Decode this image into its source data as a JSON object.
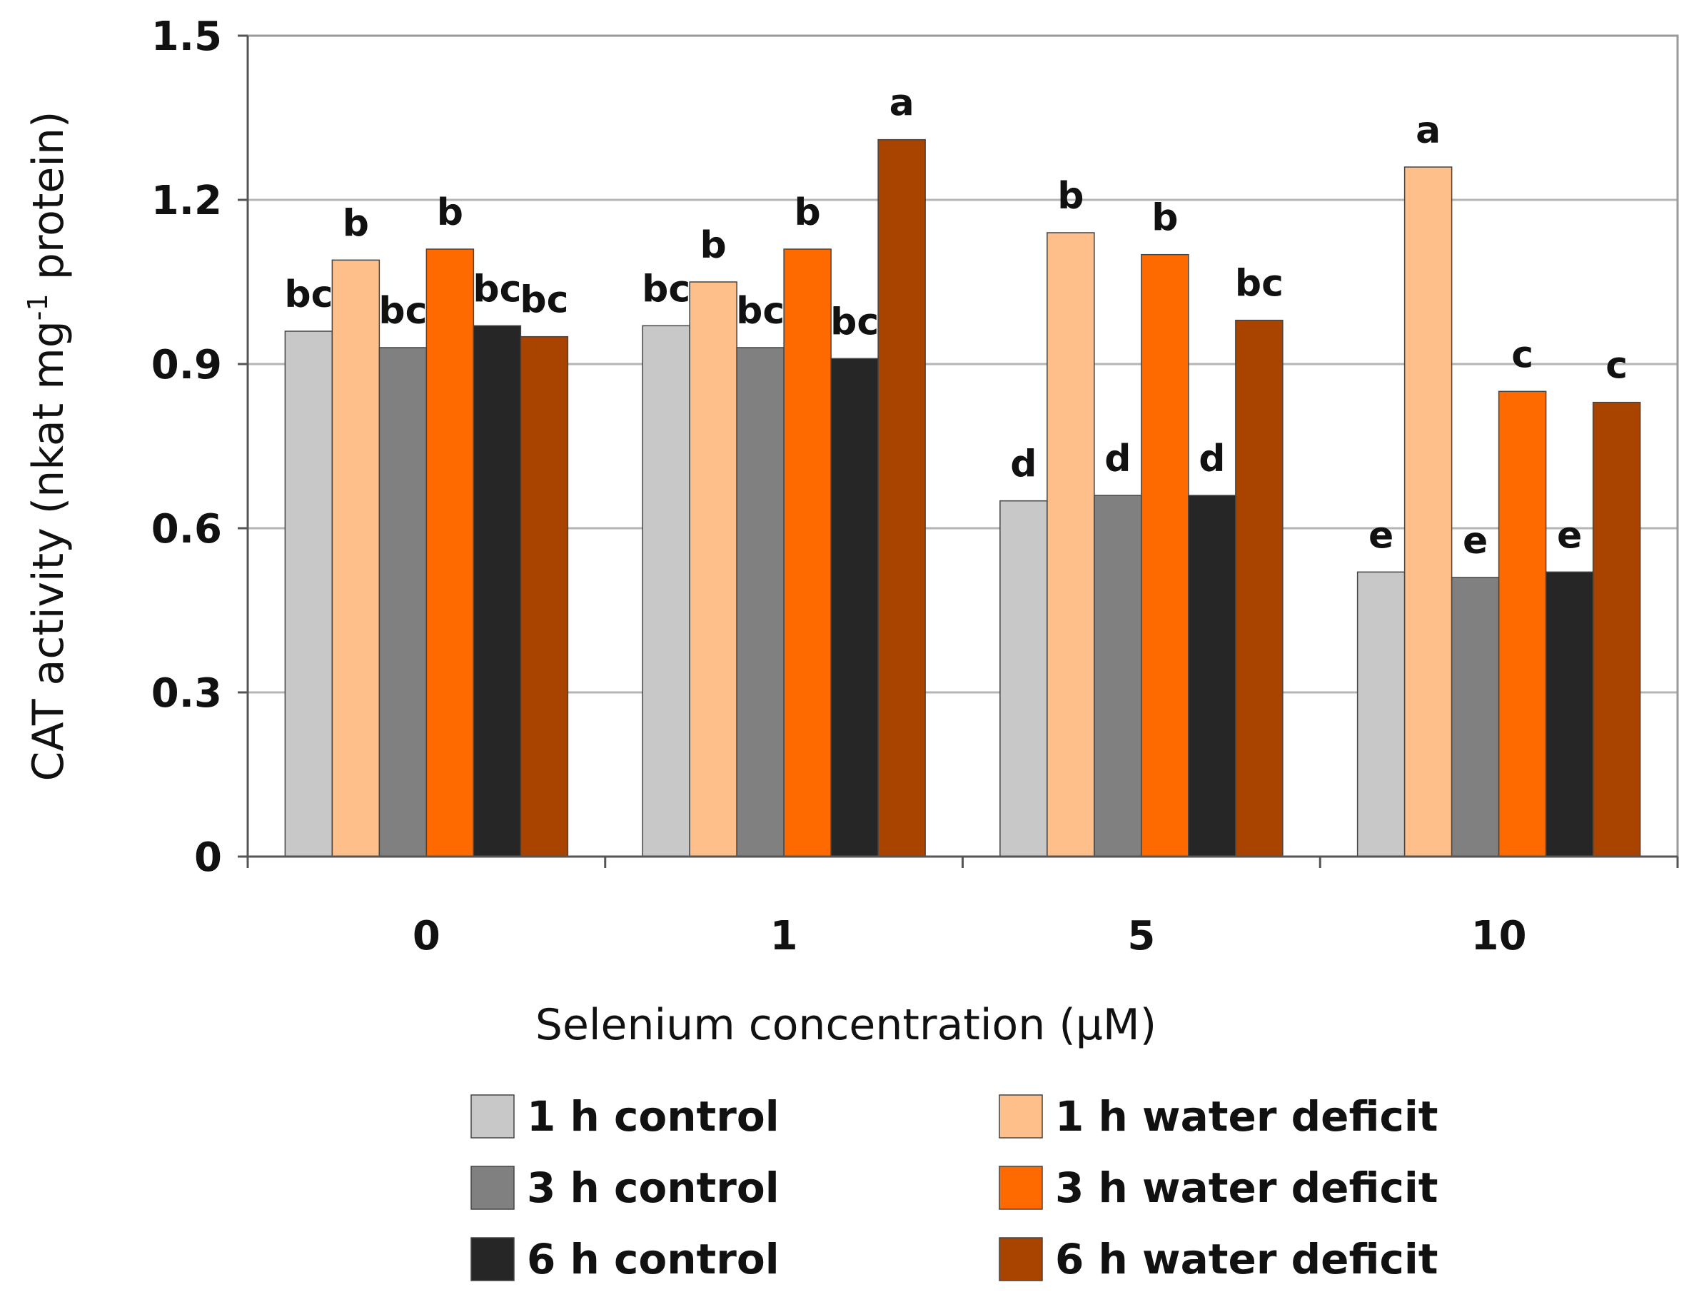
{
  "chart_data": {
    "type": "bar",
    "categories": [
      "0",
      "1",
      "5",
      "10"
    ],
    "xlabel": "Selenium concentration (µM)",
    "ylabel_main": "CAT activity (nkat mg",
    "ylabel_sup": "-1",
    "ylabel_end": " protein)",
    "ylim": [
      0,
      1.5
    ],
    "yticks": [
      0,
      0.3,
      0.6,
      0.9,
      1.2,
      1.5
    ],
    "ytick_labels": [
      "0",
      "0.3",
      "0.6",
      "0.9",
      "1.2",
      "1.5"
    ],
    "grid": true,
    "legend_position": "bottom",
    "series": [
      {
        "name": "1 h control",
        "color": "#c8c8c8",
        "values": [
          0.96,
          0.97,
          0.65,
          0.52
        ],
        "labels": [
          "bc",
          "bc",
          "d",
          "e"
        ]
      },
      {
        "name": "1 h water deficit",
        "color": "#ffbf8a",
        "values": [
          1.09,
          1.05,
          1.14,
          1.26
        ],
        "labels": [
          "b",
          "b",
          "b",
          "a"
        ]
      },
      {
        "name": "3 h control",
        "color": "#808080",
        "values": [
          0.93,
          0.93,
          0.66,
          0.51
        ],
        "labels": [
          "bc",
          "bc",
          "d",
          "e"
        ]
      },
      {
        "name": "3 h water deficit",
        "color": "#ff6a00",
        "values": [
          1.11,
          1.11,
          1.1,
          0.85
        ],
        "labels": [
          "b",
          "b",
          "b",
          "c"
        ]
      },
      {
        "name": "6 h control",
        "color": "#262626",
        "values": [
          0.97,
          0.91,
          0.66,
          0.52
        ],
        "labels": [
          "bc",
          "bc",
          "d",
          "e"
        ]
      },
      {
        "name": "6 h water deficit",
        "color": "#a84300",
        "values": [
          0.95,
          1.31,
          0.98,
          0.83
        ],
        "labels": [
          "bc",
          "a",
          "bc",
          "c"
        ]
      }
    ]
  }
}
